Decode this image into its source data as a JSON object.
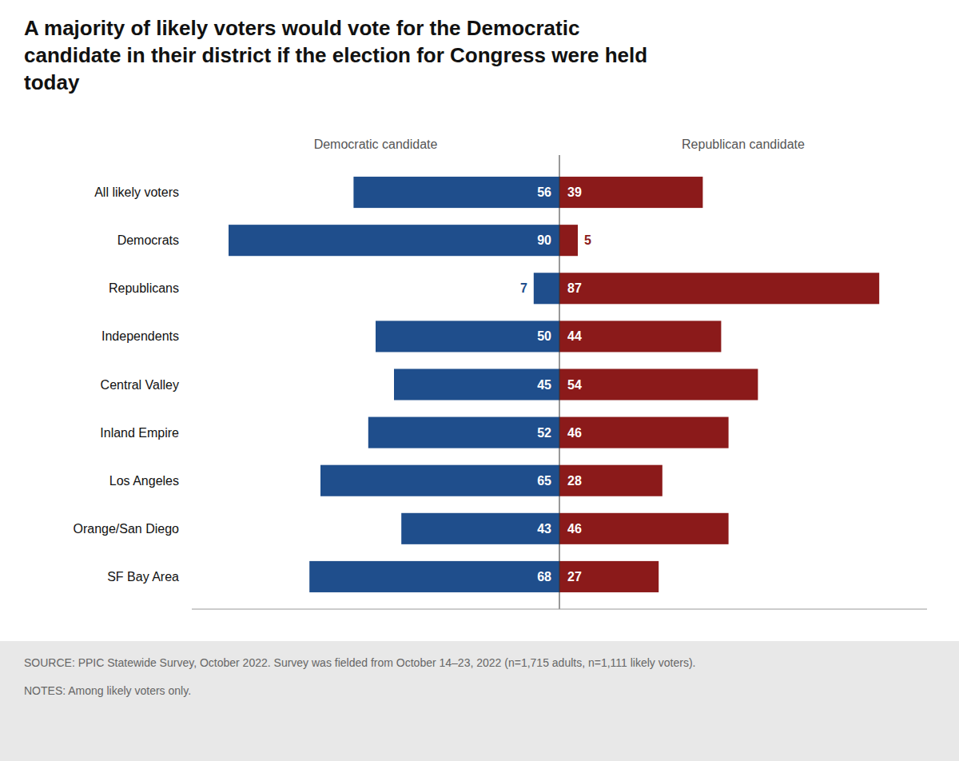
{
  "chart_data": {
    "type": "bar",
    "orientation": "horizontal",
    "title": "A majority of likely voters would vote for the Democratic\ncandidate in their district if the election for Congress were held\ntoday",
    "categories": [
      "All likely voters",
      "Democrats",
      "Republicans",
      "Independents",
      "Central Valley",
      "Inland Empire",
      "Los Angeles",
      "Orange/San Diego",
      "SF Bay Area"
    ],
    "series": [
      {
        "name": "Democratic candidate",
        "color": "#1f4e8c",
        "values": [
          56,
          90,
          7,
          50,
          45,
          52,
          65,
          43,
          68
        ]
      },
      {
        "name": "Republican candidate",
        "color": "#8b1a1a",
        "values": [
          39,
          5,
          87,
          44,
          54,
          46,
          28,
          46,
          27
        ]
      }
    ],
    "xlim": [
      0,
      100
    ],
    "data_labels": true,
    "tick_labels": false,
    "annotations": [
      "SOURCE: PPIC Statewide Survey, October 2022. Survey was fielded from October 14–23, 2022 (n=1,715 adults, n=1,111 likely voters).",
      "NOTES: Among likely voters only."
    ]
  }
}
